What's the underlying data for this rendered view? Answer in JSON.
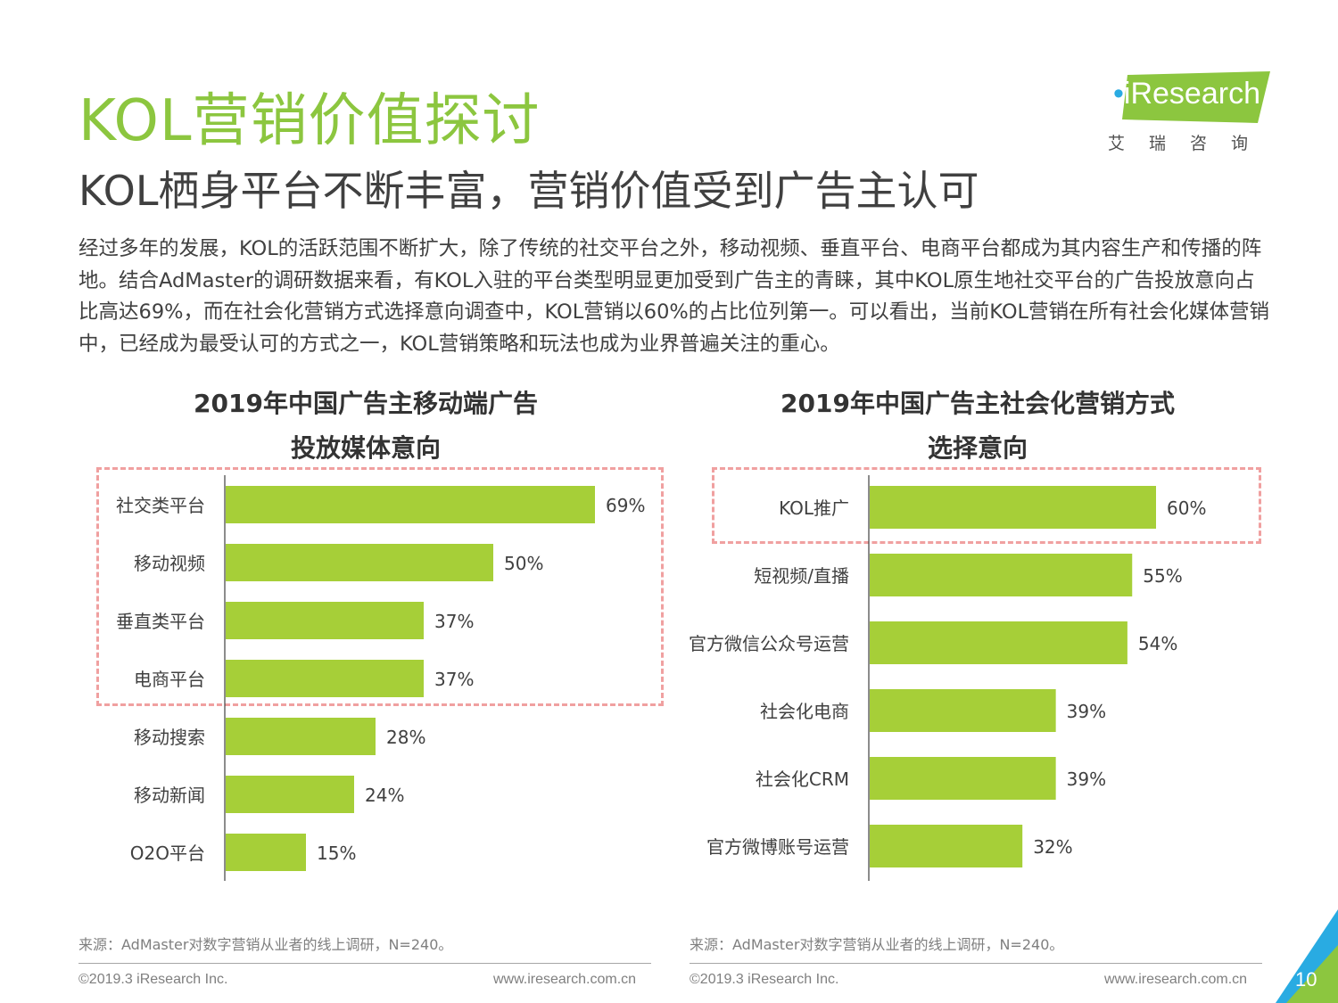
{
  "header": {
    "title": "KOL营销价值探讨",
    "subtitle": "KOL栖身平台不断丰富，营销价值受到广告主认可"
  },
  "logo": {
    "brand": "iResearch",
    "chinese": "艾瑞咨询"
  },
  "body": {
    "paragraph": "经过多年的发展，KOL的活跃范围不断扩大，除了传统的社交平台之外，移动视频、垂直平台、电商平台都成为其内容生产和传播的阵地。结合AdMaster的调研数据来看，有KOL入驻的平台类型明显更加受到广告主的青睐，其中KOL原生地社交平台的广告投放意向占比高达69%，而在社会化营销方式选择意向调查中，KOL营销以60%的占比位列第一。可以看出，当前KOL营销在所有社会化媒体营销中，已经成为最受认可的方式之一，KOL营销策略和玩法也成为业界普遍关注的重心。"
  },
  "colors": {
    "accent_green": "#8cc63f",
    "bar_green": "#a6cf38",
    "dash_red": "#f0a0a0",
    "logo_cyan": "#29abe2"
  },
  "chart_data": [
    {
      "type": "bar",
      "orientation": "horizontal",
      "title_line1": "2019年中国广告主移动端广告",
      "title_line2": "投放媒体意向",
      "categories": [
        "社交类平台",
        "移动视频",
        "垂直类平台",
        "电商平台",
        "移动搜索",
        "移动新闻",
        "O2O平台"
      ],
      "values": [
        69,
        50,
        37,
        37,
        28,
        24,
        15
      ],
      "labels": [
        "69%",
        "50%",
        "37%",
        "37%",
        "28%",
        "24%",
        "15%"
      ],
      "unit": "%",
      "highlighted": [
        "社交类平台",
        "移动视频",
        "垂直类平台",
        "电商平台"
      ]
    },
    {
      "type": "bar",
      "orientation": "horizontal",
      "title_line1": "2019年中国广告主社会化营销方式",
      "title_line2": "选择意向",
      "categories": [
        "KOL推广",
        "短视频/直播",
        "官方微信公众号运营",
        "社会化电商",
        "社会化CRM",
        "官方微博账号运营"
      ],
      "values": [
        60,
        55,
        54,
        39,
        39,
        32
      ],
      "labels": [
        "60%",
        "55%",
        "54%",
        "39%",
        "39%",
        "32%"
      ],
      "unit": "%",
      "highlighted": [
        "KOL推广"
      ]
    }
  ],
  "footer": {
    "source_left": "来源：AdMaster对数字营销从业者的线上调研，N=240。",
    "source_right": "来源：AdMaster对数字营销从业者的线上调研，N=240。",
    "copyright_left": "©2019.3 iResearch Inc.",
    "website_left": "www.iresearch.com.cn",
    "copyright_right": "©2019.3 iResearch Inc.",
    "website_right": "www.iresearch.com.cn",
    "page_number": "10"
  }
}
